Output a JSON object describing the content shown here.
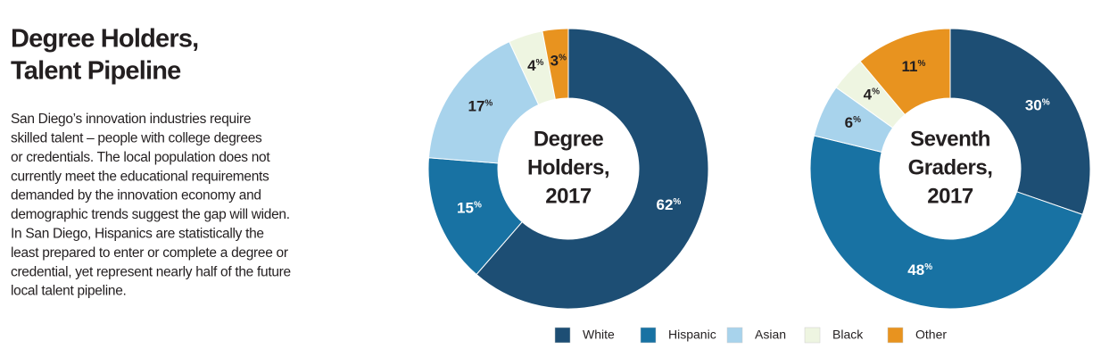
{
  "header": {
    "title": [
      "Degree Holders,",
      "Talent Pipeline"
    ],
    "body": [
      "San Diego’s innovation industries require",
      "skilled talent – people with college degrees",
      "or credentials. The local population does not",
      "currently meet the educational requirements",
      "demanded by the innovation economy and",
      "demographic trends suggest the gap will widen.",
      "In San Diego, Hispanics are statistically the",
      "least prepared to enter or complete a degree or",
      "credential, yet represent nearly half of the future",
      "local talent pipeline."
    ]
  },
  "chart_data": [
    {
      "type": "donut",
      "center_label": [
        "Degree",
        "Holders,",
        "2017"
      ],
      "categories": [
        "White",
        "Hispanic",
        "Asian",
        "Black",
        "Other"
      ],
      "colors": [
        "#1d4e74",
        "#1872a3",
        "#a8d3ec",
        "#eef5e1",
        "#e8931f"
      ],
      "values": [
        62,
        15,
        17,
        4,
        3
      ],
      "value_labels": [
        "62%",
        "15%",
        "17%",
        "4%",
        "3%"
      ]
    },
    {
      "type": "donut",
      "center_label": [
        "Seventh",
        "Graders,",
        "2017"
      ],
      "categories": [
        "White",
        "Hispanic",
        "Asian",
        "Black",
        "Other"
      ],
      "colors": [
        "#1d4e74",
        "#1872a3",
        "#a8d3ec",
        "#eef5e1",
        "#e8931f"
      ],
      "values": [
        30,
        48,
        6,
        4,
        11
      ],
      "value_labels": [
        "30%",
        "48%",
        "6%",
        "4%",
        "11%"
      ]
    }
  ]
}
